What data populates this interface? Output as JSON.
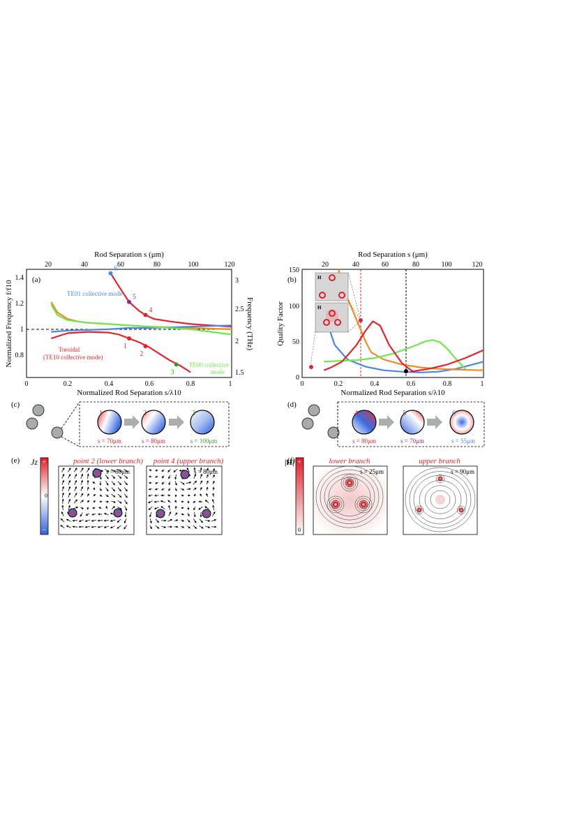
{
  "panel_a": {
    "label": "(a)",
    "top_axis_title": "Rod Separation s (μm)",
    "top_ticks": [
      "20",
      "40",
      "60",
      "80",
      "100",
      "120"
    ],
    "left_axis_title": "Normalized Frequency f/f10",
    "right_axis_title": "Frequency (THz)",
    "right_ticks": [
      "3",
      "2.5",
      "2",
      "1.5"
    ],
    "left_ticks": [
      "1.4",
      "1.2",
      "1",
      "0.8"
    ],
    "bottom_ticks": [
      "0",
      "0.2",
      "0.4",
      "0.6",
      "0.8",
      "1"
    ],
    "bottom_axis_title": "Normalized Rod Separation s/λ10",
    "label_te01": "TE01 collective mode",
    "label_toroidal_1": "Toroidal",
    "label_toroidal_2": "(TE10 collective mode)",
    "label_te00_1": "TE00 collective",
    "label_te00_2": "mode",
    "point_labels": [
      "1",
      "2",
      "3",
      "4",
      "5",
      "6"
    ]
  },
  "panel_b": {
    "label": "(b)",
    "top_axis_title": "Rod Separation s (μm)",
    "top_ticks": [
      "20",
      "40",
      "60",
      "80",
      "100",
      "120"
    ],
    "left_axis_title": "Quality Factor",
    "left_ticks": [
      "150",
      "100",
      "50",
      "0"
    ],
    "bottom_ticks": [
      "0",
      "0.2",
      "0.4",
      "0.6",
      "0.8",
      "1"
    ],
    "bottom_axis_title": "Normalized Rod Separation s/λ10",
    "inset_label": "H"
  },
  "panel_c": {
    "label": "(c)",
    "steps": [
      {
        "num": "1",
        "caption": "s = 70μm"
      },
      {
        "num": "2",
        "caption": "s = 80μm"
      },
      {
        "num": "3",
        "caption": "s = 100μm"
      }
    ]
  },
  "panel_d": {
    "label": "(d)",
    "steps": [
      {
        "num": "4",
        "caption": "s = 80μm"
      },
      {
        "num": "5",
        "caption": "s = 70μm"
      },
      {
        "num": "6",
        "caption": "s = 55μm"
      }
    ]
  },
  "panel_e": {
    "label": "(e)",
    "colorbar_title": "Jz",
    "colorbar_plus": "+",
    "colorbar_zero": "0",
    "colorbar_minus": "−",
    "title_left": "point 2 (lower branch)",
    "title_right": "point 4 (upper branch)",
    "s_left": "s = 80μm",
    "s_right": "s = 80μm"
  },
  "panel_f": {
    "label": "(f)",
    "colorbar_title": "|H|",
    "colorbar_plus": "+",
    "colorbar_zero": "0",
    "title_left": "lower branch",
    "title_right": "upper branch",
    "s_left": "s = 25μm",
    "s_right": "s = 90μm"
  },
  "colors": {
    "red": "#e0242a",
    "blue": "#4a86e8",
    "green": "#6ee84a",
    "orange": "#f08a24",
    "purple": "#8a2a8a",
    "darkgreen": "#3a9a2a",
    "arrow_gray": "#a9afad",
    "rod_gray": "#a7aca9"
  },
  "chart_data": [
    {
      "type": "line",
      "panel": "(a)",
      "xlabel": "Normalized Rod Separation s/λ10",
      "ylabel": "Normalized Frequency f/f10",
      "xlim": [
        0,
        1
      ],
      "ylim": [
        0.62,
        1.45
      ],
      "grid": false,
      "series": [
        {
          "name": "TE01 collective mode",
          "color": "#e0242a",
          "x": [
            0.41,
            0.45,
            0.5,
            0.55,
            0.58,
            0.62,
            0.7,
            0.8,
            0.9,
            1.0
          ],
          "y": [
            1.42,
            1.32,
            1.2,
            1.13,
            1.1,
            1.07,
            1.05,
            1.03,
            1.02,
            1.01
          ]
        },
        {
          "name": "Toroidal (TE10 collective mode)",
          "color": "#e0242a",
          "x": [
            0.12,
            0.2,
            0.3,
            0.4,
            0.45,
            0.5,
            0.55,
            0.6,
            0.65,
            0.7,
            0.75,
            0.8
          ],
          "y": [
            0.92,
            0.96,
            0.97,
            0.965,
            0.95,
            0.92,
            0.89,
            0.85,
            0.8,
            0.75,
            0.71,
            0.66
          ]
        },
        {
          "name": "",
          "color": "#f08a24",
          "x": [
            0.12,
            0.15,
            0.2,
            0.25,
            0.3,
            0.4,
            0.5,
            0.6,
            0.7,
            0.8,
            0.9,
            1.0
          ],
          "y": [
            1.2,
            1.12,
            1.07,
            1.05,
            1.04,
            1.03,
            1.02,
            1.01,
            1.005,
            1.0,
            0.995,
            0.99
          ]
        },
        {
          "name": "",
          "color": "#4a86e8",
          "x": [
            0.12,
            0.2,
            0.3,
            0.4,
            0.5,
            0.6,
            0.7,
            0.8,
            0.9,
            1.0
          ],
          "y": [
            0.97,
            0.98,
            0.985,
            0.99,
            1.0,
            1.0,
            1.005,
            1.01,
            1.015,
            1.02
          ]
        },
        {
          "name": "TE00 collective mode",
          "color": "#6ee84a",
          "x": [
            0.12,
            0.15,
            0.2,
            0.3,
            0.4,
            0.5,
            0.6,
            0.7,
            0.8,
            0.9,
            1.0
          ],
          "y": [
            1.18,
            1.1,
            1.06,
            1.04,
            1.03,
            1.02,
            1.01,
            1.0,
            0.99,
            0.97,
            0.95
          ]
        }
      ],
      "points": [
        {
          "label": "1",
          "x": 0.5,
          "y": 0.92
        },
        {
          "label": "2",
          "x": 0.58,
          "y": 0.86
        },
        {
          "label": "3",
          "x": 0.73,
          "y": 0.72
        },
        {
          "label": "4",
          "x": 0.58,
          "y": 1.1
        },
        {
          "label": "5",
          "x": 0.5,
          "y": 1.2
        },
        {
          "label": "6",
          "x": 0.41,
          "y": 1.42
        }
      ]
    },
    {
      "type": "line",
      "panel": "(b)",
      "xlabel": "Normalized Rod Separation s/λ10",
      "ylabel": "Quality Factor",
      "xlim": [
        0,
        1
      ],
      "ylim": [
        0,
        150
      ],
      "grid": false,
      "series": [
        {
          "name": "",
          "color": "#4a86e8",
          "x": [
            0.12,
            0.14,
            0.18,
            0.25,
            0.35,
            0.45,
            0.55,
            0.65,
            0.75,
            0.85,
            1.0
          ],
          "y": [
            100,
            75,
            45,
            25,
            15,
            10,
            8,
            7,
            8,
            12,
            22
          ]
        },
        {
          "name": "",
          "color": "#f08a24",
          "x": [
            0.2,
            0.25,
            0.3,
            0.35,
            0.38,
            0.45,
            0.55,
            0.65,
            0.75,
            0.85,
            1.0
          ],
          "y": [
            150,
            110,
            80,
            50,
            35,
            25,
            18,
            14,
            12,
            11,
            10
          ]
        },
        {
          "name": "",
          "color": "#6ee84a",
          "x": [
            0.12,
            0.2,
            0.3,
            0.4,
            0.5,
            0.6,
            0.68,
            0.72,
            0.76,
            0.8,
            0.85,
            0.9
          ],
          "y": [
            22,
            23,
            24,
            27,
            33,
            42,
            50,
            52,
            49,
            40,
            25,
            12
          ]
        },
        {
          "name": "",
          "color": "#e0242a",
          "x": [
            0.12,
            0.16,
            0.22,
            0.3,
            0.35,
            0.39,
            0.43,
            0.48,
            0.55,
            0.6,
            0.62
          ],
          "y": [
            10,
            14,
            22,
            45,
            65,
            78,
            72,
            45,
            20,
            10,
            8
          ]
        },
        {
          "name": "",
          "color": "#e0242a",
          "x": [
            0.6,
            0.7,
            0.8,
            0.9,
            1.0
          ],
          "y": [
            8,
            12,
            18,
            27,
            38
          ]
        }
      ]
    }
  ]
}
